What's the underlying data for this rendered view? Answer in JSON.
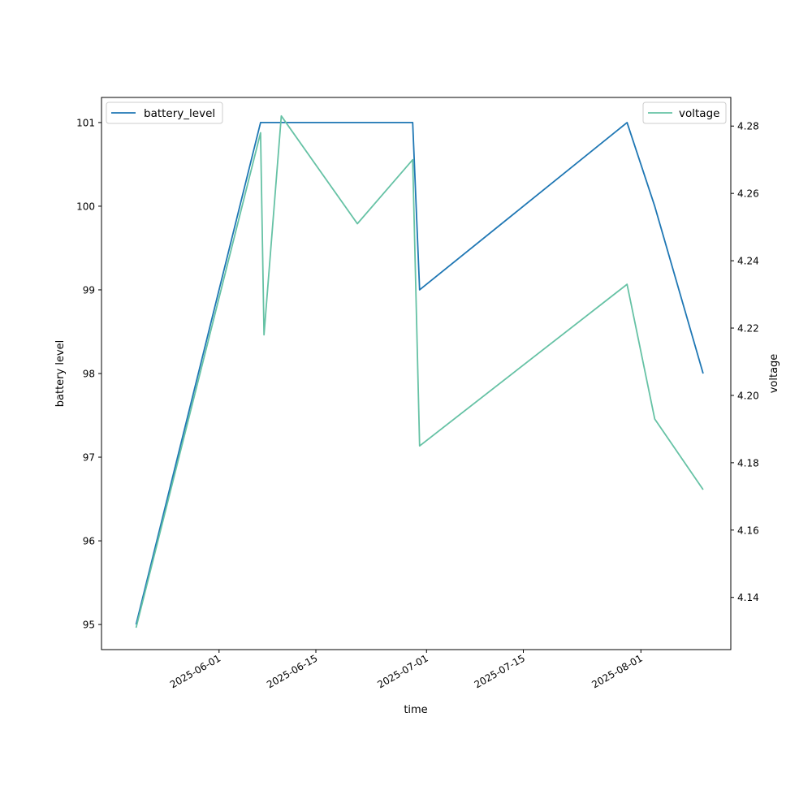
{
  "chart_data": {
    "type": "line",
    "xlabel": "time",
    "ylabel_left": "battery level",
    "ylabel_right": "voltage",
    "x_ticks": [
      "2025-06-01",
      "2025-06-15",
      "2025-07-01",
      "2025-07-15",
      "2025-08-01"
    ],
    "y_left_ticks": [
      95,
      96,
      97,
      98,
      99,
      100,
      101
    ],
    "y_right_ticks": [
      4.14,
      4.16,
      4.18,
      4.2,
      4.22,
      4.24,
      4.26,
      4.28
    ],
    "xlim": [
      "2025-05-15",
      "2025-08-14"
    ],
    "ylim_left": [
      94.7,
      101.3
    ],
    "ylim_right": [
      4.1245,
      4.2885
    ],
    "grid": false,
    "series": [
      {
        "name": "battery_level",
        "axis": "left",
        "color": "#1f77b4",
        "legend": "upper-left",
        "points": [
          [
            "2025-05-20",
            95
          ],
          [
            "2025-06-07",
            101
          ],
          [
            "2025-06-29",
            101
          ],
          [
            "2025-06-30",
            99
          ],
          [
            "2025-07-30",
            101
          ],
          [
            "2025-08-03",
            100
          ],
          [
            "2025-08-10",
            98
          ]
        ]
      },
      {
        "name": "voltage",
        "axis": "right",
        "color": "#66c2a5",
        "legend": "upper-right",
        "points": [
          [
            "2025-05-20",
            4.131
          ],
          [
            "2025-06-07",
            4.278
          ],
          [
            "2025-06-07T12:00",
            4.218
          ],
          [
            "2025-06-10",
            4.283
          ],
          [
            "2025-06-21",
            4.251
          ],
          [
            "2025-06-29",
            4.27
          ],
          [
            "2025-06-30",
            4.185
          ],
          [
            "2025-07-30",
            4.233
          ],
          [
            "2025-08-03",
            4.193
          ],
          [
            "2025-08-10",
            4.172
          ]
        ]
      }
    ]
  }
}
